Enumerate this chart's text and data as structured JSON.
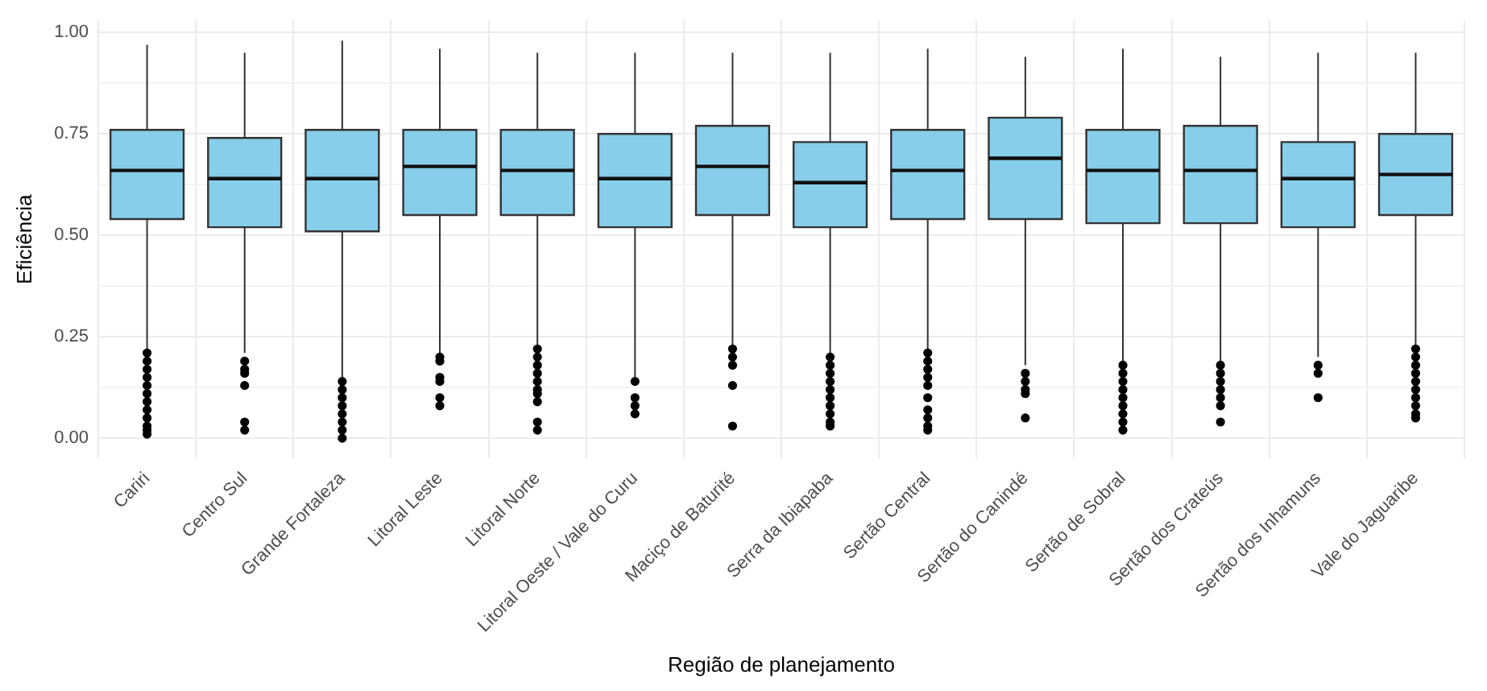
{
  "chart_data": {
    "type": "box",
    "xlabel": "Região de planejamento",
    "ylabel": "Eficiência",
    "categories": [
      "Cariri",
      "Centro Sul",
      "Grande Fortaleza",
      "Litoral Leste",
      "Litoral Norte",
      "Litoral Oeste / Vale do Curu",
      "Maciço de Baturité",
      "Serra da Ibiapaba",
      "Sertão Central",
      "Sertão do Canindé",
      "Sertão de Sobral",
      "Sertão dos Crateús",
      "Sertão dos Inhamuns",
      "Vale do Jaguaribe"
    ],
    "color": "#87ceeb",
    "boxes": [
      {
        "low": 0.22,
        "q1": 0.54,
        "median": 0.66,
        "q3": 0.76,
        "high": 0.97,
        "outliers": [
          0.21,
          0.19,
          0.17,
          0.15,
          0.13,
          0.11,
          0.09,
          0.07,
          0.05,
          0.03,
          0.02,
          0.01
        ]
      },
      {
        "low": 0.21,
        "q1": 0.52,
        "median": 0.64,
        "q3": 0.74,
        "high": 0.95,
        "outliers": [
          0.19,
          0.17,
          0.16,
          0.13,
          0.04,
          0.02
        ]
      },
      {
        "low": 0.15,
        "q1": 0.51,
        "median": 0.64,
        "q3": 0.76,
        "high": 0.98,
        "outliers": [
          0.14,
          0.12,
          0.1,
          0.08,
          0.06,
          0.04,
          0.02,
          0.0
        ]
      },
      {
        "low": 0.21,
        "q1": 0.55,
        "median": 0.67,
        "q3": 0.76,
        "high": 0.96,
        "outliers": [
          0.2,
          0.19,
          0.15,
          0.14,
          0.1,
          0.08
        ]
      },
      {
        "low": 0.23,
        "q1": 0.55,
        "median": 0.66,
        "q3": 0.76,
        "high": 0.95,
        "outliers": [
          0.22,
          0.2,
          0.18,
          0.16,
          0.14,
          0.12,
          0.11,
          0.09,
          0.04,
          0.02
        ]
      },
      {
        "low": 0.15,
        "q1": 0.52,
        "median": 0.64,
        "q3": 0.75,
        "high": 0.95,
        "outliers": [
          0.14,
          0.1,
          0.08,
          0.06
        ]
      },
      {
        "low": 0.23,
        "q1": 0.55,
        "median": 0.67,
        "q3": 0.77,
        "high": 0.95,
        "outliers": [
          0.22,
          0.2,
          0.18,
          0.13,
          0.03
        ]
      },
      {
        "low": 0.21,
        "q1": 0.52,
        "median": 0.63,
        "q3": 0.73,
        "high": 0.95,
        "outliers": [
          0.2,
          0.18,
          0.16,
          0.14,
          0.12,
          0.1,
          0.08,
          0.06,
          0.04,
          0.03
        ]
      },
      {
        "low": 0.22,
        "q1": 0.54,
        "median": 0.66,
        "q3": 0.76,
        "high": 0.96,
        "outliers": [
          0.21,
          0.19,
          0.17,
          0.15,
          0.13,
          0.1,
          0.07,
          0.05,
          0.03,
          0.02
        ]
      },
      {
        "low": 0.18,
        "q1": 0.54,
        "median": 0.69,
        "q3": 0.79,
        "high": 0.94,
        "outliers": [
          0.16,
          0.14,
          0.12,
          0.11,
          0.05
        ]
      },
      {
        "low": 0.19,
        "q1": 0.53,
        "median": 0.66,
        "q3": 0.76,
        "high": 0.96,
        "outliers": [
          0.18,
          0.16,
          0.14,
          0.12,
          0.1,
          0.08,
          0.06,
          0.04,
          0.02
        ]
      },
      {
        "low": 0.19,
        "q1": 0.53,
        "median": 0.66,
        "q3": 0.77,
        "high": 0.94,
        "outliers": [
          0.18,
          0.16,
          0.14,
          0.12,
          0.1,
          0.08,
          0.04
        ]
      },
      {
        "low": 0.2,
        "q1": 0.52,
        "median": 0.64,
        "q3": 0.73,
        "high": 0.95,
        "outliers": [
          0.18,
          0.16,
          0.1
        ]
      },
      {
        "low": 0.23,
        "q1": 0.55,
        "median": 0.65,
        "q3": 0.75,
        "high": 0.95,
        "outliers": [
          0.22,
          0.2,
          0.18,
          0.16,
          0.14,
          0.12,
          0.1,
          0.08,
          0.06,
          0.05
        ]
      }
    ],
    "ylim": [
      -0.05,
      1.03
    ],
    "yticks": [
      {
        "value": 0,
        "label": "0.00"
      },
      {
        "value": 0.125,
        "label": null
      },
      {
        "value": 0.25,
        "label": "0.25"
      },
      {
        "value": 0.375,
        "label": null
      },
      {
        "value": 0.5,
        "label": "0.50"
      },
      {
        "value": 0.625,
        "label": null
      },
      {
        "value": 0.75,
        "label": "0.75"
      },
      {
        "value": 0.875,
        "label": null
      },
      {
        "value": 1,
        "label": "1.00"
      }
    ],
    "grid": true
  }
}
